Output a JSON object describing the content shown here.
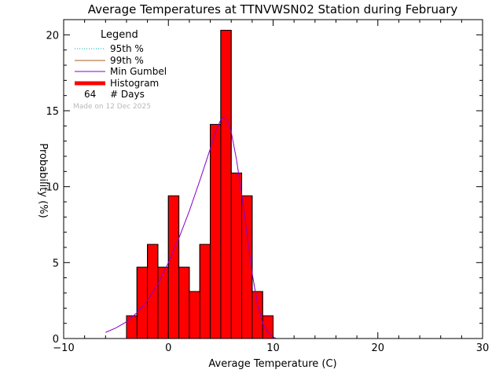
{
  "chart_data": {
    "type": "bar",
    "title": "Average Temperatures at TTNVWSN02 Station during February",
    "xlabel": "Average Temperature (C)",
    "ylabel": "Probability (%)",
    "xlim": [
      -10,
      30
    ],
    "ylim": [
      0,
      21
    ],
    "x_ticks": [
      -10,
      0,
      10,
      20,
      30
    ],
    "y_ticks": [
      0,
      5,
      10,
      15,
      20
    ],
    "bin_width": 1,
    "bins": [
      {
        "x0": -4,
        "x1": -3,
        "value": 1.5
      },
      {
        "x0": -3,
        "x1": -2,
        "value": 4.7
      },
      {
        "x0": -2,
        "x1": -1,
        "value": 6.2
      },
      {
        "x0": -1,
        "x1": 0,
        "value": 4.7
      },
      {
        "x0": 0,
        "x1": 1,
        "value": 9.4
      },
      {
        "x0": 1,
        "x1": 2,
        "value": 4.7
      },
      {
        "x0": 2,
        "x1": 3,
        "value": 3.1
      },
      {
        "x0": 3,
        "x1": 4,
        "value": 6.2
      },
      {
        "x0": 4,
        "x1": 5,
        "value": 14.1
      },
      {
        "x0": 5,
        "x1": 6,
        "value": 20.3
      },
      {
        "x0": 6,
        "x1": 7,
        "value": 10.9
      },
      {
        "x0": 7,
        "x1": 8,
        "value": 9.4
      },
      {
        "x0": 8,
        "x1": 9,
        "value": 3.1
      },
      {
        "x0": 9,
        "x1": 10,
        "value": 1.5
      }
    ],
    "gumbel_curve": {
      "x": [
        -6.0,
        -5.0,
        -4.0,
        -3.0,
        -2.0,
        -1.0,
        0.0,
        1.0,
        2.0,
        3.0,
        4.0,
        4.5,
        5.0,
        5.3,
        5.6,
        6.0,
        6.5,
        7.0,
        7.5,
        8.0,
        8.5,
        9.0,
        9.5,
        10.0,
        10.3
      ],
      "y": [
        0.4,
        0.7,
        1.1,
        1.7,
        2.5,
        3.6,
        5.0,
        6.6,
        8.4,
        10.4,
        12.5,
        13.6,
        14.4,
        14.6,
        14.4,
        13.6,
        11.8,
        9.5,
        6.9,
        4.3,
        2.3,
        1.0,
        0.4,
        0.1,
        0.0
      ]
    },
    "colors": {
      "histogram": "#ff0000",
      "gumbel": "#8800cc",
      "p95": "#00aaaa",
      "p99": "#b05a1e"
    },
    "legend": {
      "placement": "top-left",
      "title": "Legend",
      "items": [
        {
          "label": "95th %",
          "style": "dotted",
          "color": "#00aaaa"
        },
        {
          "label": "99th %",
          "style": "solid",
          "color": "#b05a1e"
        },
        {
          "label": "Min Gumbel",
          "style": "solid",
          "color": "#8800cc"
        },
        {
          "label": "Histogram",
          "style": "thick",
          "color": "#ff0000"
        }
      ],
      "days_count": "64",
      "days_label": "# Days"
    },
    "watermark": "Made on 12 Dec 2025"
  }
}
